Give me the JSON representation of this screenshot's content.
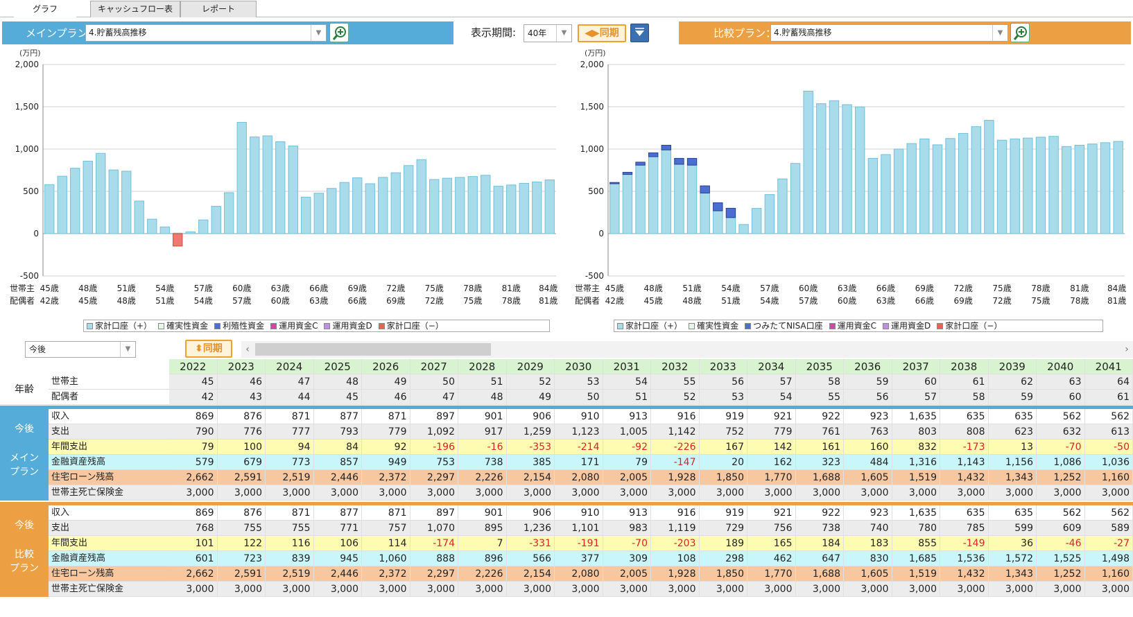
{
  "tabs": [
    "グラフ",
    "キャッシュフロー表",
    "レポート"
  ],
  "main_plan": {
    "label": "メインプラン：",
    "value": "4.貯蓄残高推移"
  },
  "compare_plan": {
    "label": "比較プラン：",
    "value": "4.貯蓄残高推移"
  },
  "period": {
    "label": "表示期間:",
    "value": "40年"
  },
  "sync_label": "同期",
  "future_select": "今後",
  "colors": {
    "main": "#55acd8",
    "compare": "#eca043",
    "bar": "#a8dceb",
    "bar_neg": "#ee7a72",
    "nisa": "#4a6fd0"
  },
  "charts": {
    "unit": "(万円)",
    "yticks": [
      "2,000",
      "1,500",
      "1,000",
      "500",
      "0",
      "-500"
    ],
    "row_head_age": "世帯主",
    "row_spouse": "配偶者",
    "head_ages": [
      "45歳",
      "48歳",
      "51歳",
      "54歳",
      "57歳",
      "60歳",
      "63歳",
      "66歳",
      "69歳",
      "72歳",
      "75歳",
      "78歳",
      "81歳",
      "84歳"
    ],
    "spouse_ages": [
      "42歳",
      "45歳",
      "48歳",
      "51歳",
      "54歳",
      "57歳",
      "60歳",
      "63歳",
      "66歳",
      "69歳",
      "72歳",
      "75歳",
      "78歳",
      "81歳"
    ],
    "legend_main": [
      "家計口座（+）",
      "確実性資金",
      "利殖性資金",
      "運用資金C",
      "運用資金D",
      "家計口座（−）"
    ],
    "legend_compare": [
      "家計口座（+）",
      "確実性資金",
      "つみたてNISA口座",
      "運用資金C",
      "運用資金D",
      "家計口座（−）"
    ],
    "legend_colors": [
      "#a8dceb",
      "#e8f8e8",
      "#4a6fd0",
      "#e040a0",
      "#c090e0",
      "#ee6050"
    ]
  },
  "chart_data": [
    {
      "type": "bar",
      "title": "",
      "ylabel": "(万円)",
      "ylim": [
        -500,
        2000
      ],
      "series": [
        {
          "name": "家計口座（+）",
          "values": [
            579,
            679,
            773,
            857,
            949,
            753,
            738,
            385,
            171,
            79,
            0,
            20,
            162,
            323,
            484,
            1316,
            1143,
            1156,
            1086,
            1036,
            432,
            478,
            535,
            605,
            660,
            590,
            665,
            720,
            805,
            875,
            640,
            655,
            665,
            675,
            690,
            560,
            575,
            595,
            610,
            635
          ]
        },
        {
          "name": "家計口座（−）",
          "values": [
            0,
            0,
            0,
            0,
            0,
            0,
            0,
            0,
            0,
            0,
            -147,
            0,
            0,
            0,
            0,
            0,
            0,
            0,
            0,
            0,
            0,
            0,
            0,
            0,
            0,
            0,
            0,
            0,
            0,
            0,
            0,
            0,
            0,
            0,
            0,
            0,
            0,
            0,
            0,
            0
          ]
        }
      ]
    },
    {
      "type": "bar",
      "title": "",
      "ylabel": "(万円)",
      "ylim": [
        -500,
        2000
      ],
      "series": [
        {
          "name": "家計口座（+）",
          "values": [
            590,
            700,
            810,
            910,
            990,
            820,
            810,
            480,
            270,
            190,
            108,
            298,
            462,
            647,
            830,
            1685,
            1536,
            1572,
            1525,
            1498,
            890,
            935,
            1000,
            1065,
            1120,
            1050,
            1125,
            1185,
            1265,
            1340,
            1105,
            1120,
            1130,
            1140,
            1150,
            1030,
            1045,
            1060,
            1075,
            1090
          ]
        },
        {
          "name": "つみたてNISA口座",
          "values": [
            15,
            25,
            35,
            45,
            55,
            70,
            80,
            85,
            95,
            110,
            0,
            0,
            0,
            0,
            0,
            0,
            0,
            0,
            0,
            0,
            0,
            0,
            0,
            0,
            0,
            0,
            0,
            0,
            0,
            0,
            0,
            0,
            0,
            0,
            0,
            0,
            0,
            0,
            0,
            0
          ]
        }
      ]
    }
  ],
  "table": {
    "years": [
      "2022",
      "2023",
      "2024",
      "2025",
      "2026",
      "2027",
      "2028",
      "2029",
      "2030",
      "2031",
      "2032",
      "2033",
      "2034",
      "2035",
      "2036",
      "2037",
      "2038",
      "2039",
      "2040",
      "2041"
    ],
    "age_group": "年齢",
    "age_rows": [
      {
        "label": "世帯主",
        "values": [
          "45",
          "46",
          "47",
          "48",
          "49",
          "50",
          "51",
          "52",
          "53",
          "54",
          "55",
          "56",
          "57",
          "58",
          "59",
          "60",
          "61",
          "62",
          "63",
          "64"
        ]
      },
      {
        "label": "配偶者",
        "values": [
          "42",
          "43",
          "44",
          "45",
          "46",
          "47",
          "48",
          "49",
          "50",
          "51",
          "52",
          "53",
          "54",
          "55",
          "56",
          "57",
          "58",
          "59",
          "60",
          "61"
        ]
      }
    ],
    "main_group": {
      "title1": "今後",
      "title2": "メイン",
      "title3": "プラン"
    },
    "main_rows": [
      {
        "label": "収入",
        "bg": "#ffffff",
        "values": [
          "869",
          "876",
          "871",
          "877",
          "871",
          "897",
          "901",
          "906",
          "910",
          "913",
          "916",
          "919",
          "921",
          "922",
          "923",
          "1,635",
          "635",
          "635",
          "562",
          "562"
        ]
      },
      {
        "label": "支出",
        "bg": "#ececec",
        "values": [
          "790",
          "776",
          "777",
          "793",
          "779",
          "1,092",
          "917",
          "1,259",
          "1,123",
          "1,005",
          "1,142",
          "752",
          "779",
          "761",
          "763",
          "803",
          "808",
          "623",
          "632",
          "613"
        ]
      },
      {
        "label": "年間支出",
        "bg": "#fdfcb0",
        "values": [
          "79",
          "100",
          "94",
          "84",
          "92",
          "-196",
          "-16",
          "-353",
          "-214",
          "-92",
          "-226",
          "167",
          "142",
          "161",
          "160",
          "832",
          "-173",
          "13",
          "-70",
          "-50"
        ]
      },
      {
        "label": "金融資産残高",
        "bg": "#c8f6fb",
        "values": [
          "579",
          "679",
          "773",
          "857",
          "949",
          "753",
          "738",
          "385",
          "171",
          "79",
          "-147",
          "20",
          "162",
          "323",
          "484",
          "1,316",
          "1,143",
          "1,156",
          "1,086",
          "1,036"
        ]
      },
      {
        "label": "住宅ローン残高",
        "bg": "#f7c7a0",
        "values": [
          "2,662",
          "2,591",
          "2,519",
          "2,446",
          "2,372",
          "2,297",
          "2,226",
          "2,154",
          "2,080",
          "2,005",
          "1,928",
          "1,850",
          "1,770",
          "1,688",
          "1,605",
          "1,519",
          "1,432",
          "1,343",
          "1,252",
          "1,160"
        ]
      },
      {
        "label": "世帯主死亡保険金",
        "bg": "#ececec",
        "values": [
          "3,000",
          "3,000",
          "3,000",
          "3,000",
          "3,000",
          "3,000",
          "3,000",
          "3,000",
          "3,000",
          "3,000",
          "3,000",
          "3,000",
          "3,000",
          "3,000",
          "3,000",
          "3,000",
          "3,000",
          "3,000",
          "3,000",
          "3,000"
        ]
      }
    ],
    "comp_group": {
      "title1": "今後",
      "title2": "比較",
      "title3": "プラン"
    },
    "comp_rows": [
      {
        "label": "収入",
        "bg": "#ffffff",
        "values": [
          "869",
          "876",
          "871",
          "877",
          "871",
          "897",
          "901",
          "906",
          "910",
          "913",
          "916",
          "919",
          "921",
          "922",
          "923",
          "1,635",
          "635",
          "635",
          "562",
          "562"
        ]
      },
      {
        "label": "支出",
        "bg": "#ececec",
        "values": [
          "768",
          "755",
          "755",
          "771",
          "757",
          "1,070",
          "895",
          "1,236",
          "1,101",
          "983",
          "1,119",
          "729",
          "756",
          "738",
          "740",
          "780",
          "785",
          "599",
          "609",
          "589"
        ]
      },
      {
        "label": "年間支出",
        "bg": "#fdfcb0",
        "values": [
          "101",
          "122",
          "116",
          "106",
          "114",
          "-174",
          "7",
          "-331",
          "-191",
          "-70",
          "-203",
          "189",
          "165",
          "184",
          "183",
          "855",
          "-149",
          "36",
          "-46",
          "-27"
        ]
      },
      {
        "label": "金融資産残高",
        "bg": "#c8f6fb",
        "values": [
          "601",
          "723",
          "839",
          "945",
          "1,060",
          "888",
          "896",
          "566",
          "377",
          "309",
          "108",
          "298",
          "462",
          "647",
          "830",
          "1,685",
          "1,536",
          "1,572",
          "1,525",
          "1,498"
        ]
      },
      {
        "label": "住宅ローン残高",
        "bg": "#f7c7a0",
        "values": [
          "2,662",
          "2,591",
          "2,519",
          "2,446",
          "2,372",
          "2,297",
          "2,226",
          "2,154",
          "2,080",
          "2,005",
          "1,928",
          "1,850",
          "1,770",
          "1,688",
          "1,605",
          "1,519",
          "1,432",
          "1,343",
          "1,252",
          "1,160"
        ]
      },
      {
        "label": "世帯主死亡保険金",
        "bg": "#ececec",
        "values": [
          "3,000",
          "3,000",
          "3,000",
          "3,000",
          "3,000",
          "3,000",
          "3,000",
          "3,000",
          "3,000",
          "3,000",
          "3,000",
          "3,000",
          "3,000",
          "3,000",
          "3,000",
          "3,000",
          "3,000",
          "3,000",
          "3,000",
          "3,000"
        ]
      }
    ]
  }
}
